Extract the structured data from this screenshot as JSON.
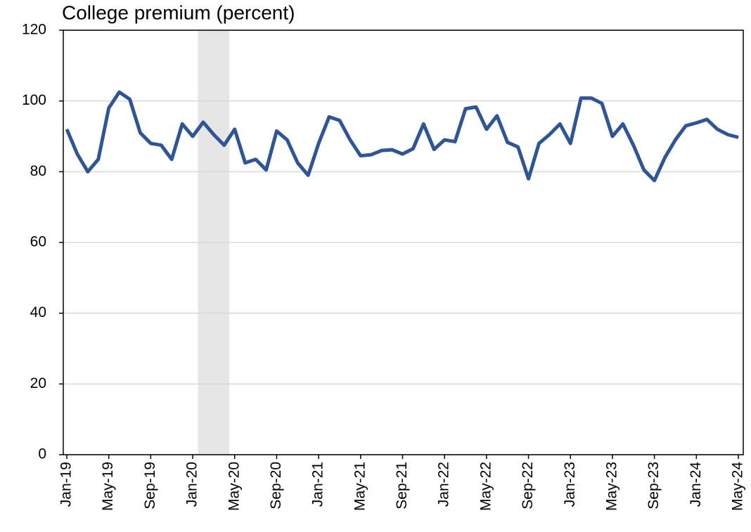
{
  "chart_data": {
    "type": "line",
    "title": "College premium (percent)",
    "categories": [
      "Jan-19",
      null,
      null,
      null,
      "May-19",
      null,
      null,
      null,
      "Sep-19",
      null,
      null,
      null,
      "Jan-20",
      null,
      null,
      null,
      "May-20",
      null,
      null,
      null,
      "Sep-20",
      null,
      null,
      null,
      "Jan-21",
      null,
      null,
      null,
      "May-21",
      null,
      null,
      null,
      "Sep-21",
      null,
      null,
      null,
      "Jan-22",
      null,
      null,
      null,
      "May-22",
      null,
      null,
      null,
      "Sep-22",
      null,
      null,
      null,
      "Jan-23",
      null,
      null,
      null,
      "May-23",
      null,
      null,
      null,
      "Sep-23",
      null,
      null,
      null,
      "Jan-24",
      null,
      null,
      null,
      "May-24"
    ],
    "series": [
      {
        "name": "College premium",
        "color": "#2f5597",
        "values": [
          92,
          85,
          80,
          83.5,
          98,
          102.5,
          100.5,
          91,
          88,
          87.5,
          83.5,
          93.5,
          90,
          94,
          90.5,
          87.5,
          92,
          82.5,
          83.5,
          80.5,
          91.5,
          89,
          82.5,
          79,
          88,
          95.5,
          94.5,
          89,
          84.5,
          84.8,
          86,
          86.2,
          85,
          86.5,
          93.5,
          86.3,
          89,
          88.5,
          97.8,
          98.3,
          92,
          95.8,
          88.3,
          87,
          78,
          88,
          90.5,
          93.5,
          88,
          100.8,
          100.8,
          99.3,
          90,
          93.5,
          87.5,
          80.5,
          77.5,
          84,
          89,
          93,
          93.8,
          94.8,
          92,
          90.5,
          89.7
        ]
      }
    ],
    "shade": {
      "start": 13,
      "end": 15,
      "color": "#e6e6e6"
    },
    "ylim": [
      0,
      120
    ],
    "yticks": [
      0,
      20,
      40,
      60,
      80,
      100,
      120
    ],
    "grid": true
  }
}
